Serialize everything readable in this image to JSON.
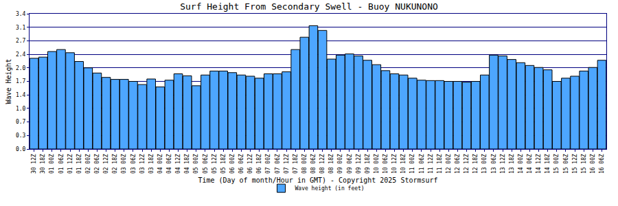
{
  "chart_data": {
    "type": "bar",
    "title": "Surf Height From Secondary Swell - Buoy NUKUNONO",
    "x_label": "Time (Day of month/Hour in GMT) - Copyright 2025 Stormsurf",
    "y_label": "Wave Height",
    "categories": [
      "30 12Z",
      "30 18Z",
      "01 00Z",
      "01 06Z",
      "01 12Z",
      "01 18Z",
      "02 00Z",
      "02 06Z",
      "02 12Z",
      "02 18Z",
      "03 00Z",
      "03 06Z",
      "03 12Z",
      "03 18Z",
      "04 00Z",
      "04 06Z",
      "04 12Z",
      "04 18Z",
      "05 00Z",
      "05 06Z",
      "05 12Z",
      "05 18Z",
      "06 00Z",
      "06 06Z",
      "06 12Z",
      "06 18Z",
      "07 00Z",
      "07 06Z",
      "07 12Z",
      "07 18Z",
      "08 00Z",
      "08 06Z",
      "08 12Z",
      "08 18Z",
      "09 00Z",
      "09 06Z",
      "09 12Z",
      "09 18Z",
      "10 00Z",
      "10 06Z",
      "10 12Z",
      "10 18Z",
      "11 00Z",
      "11 06Z",
      "11 12Z",
      "11 18Z",
      "12 00Z",
      "12 06Z",
      "12 12Z",
      "12 18Z",
      "13 00Z",
      "13 06Z",
      "13 12Z",
      "13 18Z",
      "14 00Z",
      "14 06Z",
      "14 12Z",
      "14 18Z",
      "15 00Z",
      "15 06Z",
      "15 12Z",
      "15 18Z",
      "16 00Z",
      "16 06Z"
    ],
    "series": [
      {
        "name": "Wave height (in feet)",
        "color": "#4da6ff",
        "values": [
          2.28,
          2.31,
          2.45,
          2.5,
          2.42,
          2.2,
          2.04,
          1.91,
          1.8,
          1.75,
          1.75,
          1.7,
          1.62,
          1.76,
          1.56,
          1.73,
          1.89,
          1.84,
          1.59,
          1.86,
          1.96,
          1.96,
          1.92,
          1.86,
          1.83,
          1.78,
          1.89,
          1.89,
          1.94,
          2.5,
          2.81,
          3.1,
          2.98,
          2.26,
          2.36,
          2.39,
          2.34,
          2.23,
          2.12,
          1.97,
          1.89,
          1.86,
          1.78,
          1.73,
          1.72,
          1.72,
          1.7,
          1.7,
          1.68,
          1.7,
          1.86,
          2.36,
          2.34,
          2.25,
          2.17,
          2.1,
          2.05,
          1.99,
          1.7,
          1.78,
          1.83,
          1.96,
          2.05,
          2.23
        ]
      }
    ],
    "ylim": [
      0,
      3.4
    ],
    "yticks": [
      {
        "value": 0,
        "label": "0.0"
      },
      {
        "value": 0.34,
        "label": "0.3"
      },
      {
        "value": 0.68,
        "label": "0.7"
      },
      {
        "value": 1.02,
        "label": "1.0"
      },
      {
        "value": 1.36,
        "label": "1.4"
      },
      {
        "value": 1.7,
        "label": "1.7"
      },
      {
        "value": 2.04,
        "label": "2.0"
      },
      {
        "value": 2.38,
        "label": "2.4"
      },
      {
        "value": 2.72,
        "label": "2.7"
      },
      {
        "value": 3.06,
        "label": "3.1"
      },
      {
        "value": 3.4,
        "label": "3.4"
      }
    ],
    "grid": true,
    "legend": "bottom"
  }
}
